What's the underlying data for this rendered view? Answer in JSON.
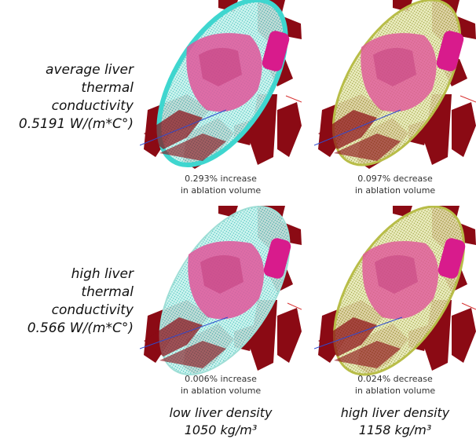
{
  "rows": [
    {
      "label_lines": [
        "average liver",
        "thermal conductivity",
        "0.5191 W/(m*C°)"
      ]
    },
    {
      "label_lines": [
        "high liver",
        "thermal conductivity",
        "0.566 W/(m*C°)"
      ]
    }
  ],
  "columns": [
    {
      "label_lines": [
        "low liver density",
        "1050 kg/m³"
      ]
    },
    {
      "label_lines": [
        "high liver density",
        "1158 kg/m³"
      ]
    }
  ],
  "captions": [
    {
      "line1": "0.293% increase",
      "line2": "in ablation volume"
    },
    {
      "line1": "0.097% decrease",
      "line2": "in ablation volume"
    },
    {
      "line1": "0.006% increase",
      "line2": "in ablation volume"
    },
    {
      "line1": "0.024% decrease",
      "line2": "in ablation volume"
    }
  ],
  "colors": {
    "vessel": "#8b0a14",
    "tumor": "#e0559a",
    "cyan_zone": "#5fe0d8",
    "olive_zone": "#a9b23a",
    "probe": "#d81b8c"
  }
}
